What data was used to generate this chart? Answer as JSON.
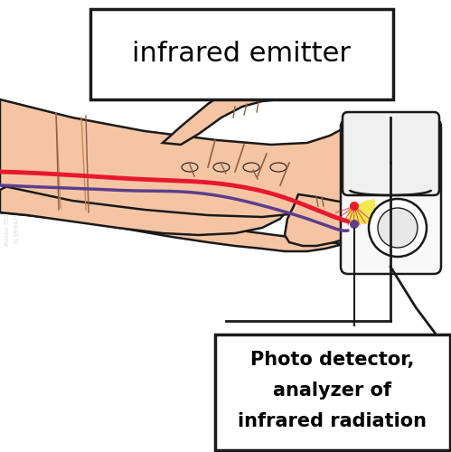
{
  "background_color": "#ffffff",
  "skin_color": "#f5c5a3",
  "skin_dark": "#d4956a",
  "skin_outline": "#1a1a1a",
  "skin_crease": "#c8885a",
  "red_line_color": "#e8192c",
  "purple_line_color": "#5c3d8f",
  "device_color": "#ffffff",
  "device_outline": "#1a1a1a",
  "yellow_area": "#f5e642",
  "label_top_text": "infrared emitter",
  "label_bottom_line1": "Photo detector,",
  "label_bottom_line2": "analyzer of",
  "label_bottom_line3": "infrared radiation",
  "fig_width": 4.99,
  "fig_height": 5.0,
  "dpi": 100
}
